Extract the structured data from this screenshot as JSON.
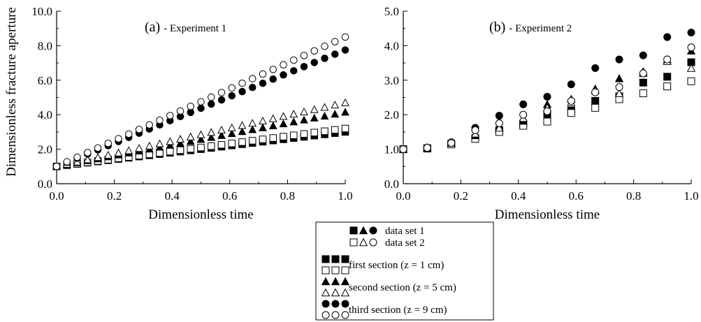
{
  "chart_data": [
    {
      "type": "scatter",
      "panel_label": "(a)",
      "title": "- Experiment 1",
      "xlabel": "Dimensionless time",
      "ylabel": "Dimensionless fracture aperture",
      "xlim": [
        0.0,
        1.0
      ],
      "ylim": [
        0.0,
        10.0
      ],
      "x_ticks": [
        "0.0",
        "0.2",
        "0.4",
        "0.6",
        "0.8",
        "1.0"
      ],
      "y_ticks": [
        "0.0",
        "2.0",
        "4.0",
        "6.0",
        "8.0",
        "10.0"
      ],
      "point_count": 29,
      "series": [
        {
          "name": "first section, data set 1",
          "marker": "square",
          "filled": true,
          "start": 1.0,
          "end": 3.0,
          "power": 1.0
        },
        {
          "name": "first section, data set 2",
          "marker": "square",
          "filled": false,
          "start": 1.0,
          "end": 3.2,
          "power": 1.0
        },
        {
          "name": "second section, data set 1",
          "marker": "triangle",
          "filled": true,
          "start": 1.0,
          "end": 4.15,
          "power": 1.0
        },
        {
          "name": "second section, data set 2",
          "marker": "triangle",
          "filled": false,
          "start": 1.0,
          "end": 4.7,
          "power": 1.0
        },
        {
          "name": "third section, data set 1",
          "marker": "circle",
          "filled": true,
          "start": 1.0,
          "end": 7.75,
          "power": 1.0
        },
        {
          "name": "third section, data set 2",
          "marker": "circle",
          "filled": false,
          "start": 1.0,
          "end": 8.5,
          "power": 1.0
        }
      ]
    },
    {
      "type": "scatter",
      "panel_label": "(b)",
      "title": "- Experiment 2",
      "xlabel": "Dimensionless time",
      "ylabel": "",
      "xlim": [
        0.0,
        1.0
      ],
      "ylim": [
        0.0,
        5.0
      ],
      "x_ticks": [
        "0.0",
        "0.2",
        "0.4",
        "0.6",
        "0.8",
        "1.0"
      ],
      "y_ticks": [
        "0.0",
        "1.0",
        "2.0",
        "3.0",
        "4.0",
        "5.0"
      ],
      "x": [
        0.0,
        0.0833,
        0.1667,
        0.25,
        0.3333,
        0.4167,
        0.5,
        0.5833,
        0.6667,
        0.75,
        0.8333,
        0.9167,
        1.0
      ],
      "series": [
        {
          "name": "first section, data set 1",
          "marker": "square",
          "filled": true,
          "values": [
            1.0,
            1.02,
            1.15,
            1.32,
            1.55,
            1.74,
            1.97,
            2.12,
            2.4,
            2.53,
            2.93,
            3.1,
            3.52
          ]
        },
        {
          "name": "first section, data set 2",
          "marker": "square",
          "filled": false,
          "values": [
            1.0,
            1.03,
            1.14,
            1.3,
            1.5,
            1.68,
            1.8,
            2.05,
            2.2,
            2.45,
            2.62,
            2.82,
            2.97
          ]
        },
        {
          "name": "second section, data set 1",
          "marker": "triangle",
          "filled": true,
          "values": [
            1.0,
            1.05,
            1.2,
            1.4,
            1.68,
            1.82,
            2.3,
            2.45,
            2.75,
            3.05,
            3.25,
            3.6,
            3.85
          ]
        },
        {
          "name": "second section, data set 2",
          "marker": "triangle",
          "filled": false,
          "values": [
            1.0,
            1.05,
            1.18,
            1.45,
            1.62,
            1.9,
            2.2,
            2.35,
            2.7,
            2.62,
            3.2,
            3.55,
            3.35
          ]
        },
        {
          "name": "third section, data set 1",
          "marker": "circle",
          "filled": true,
          "values": [
            1.0,
            1.02,
            1.2,
            1.62,
            1.97,
            2.3,
            2.52,
            2.88,
            3.35,
            3.6,
            3.72,
            4.25,
            4.38
          ]
        },
        {
          "name": "third section, data set 2",
          "marker": "circle",
          "filled": false,
          "values": [
            1.0,
            1.04,
            1.18,
            1.55,
            1.75,
            2.0,
            2.1,
            2.4,
            2.65,
            2.8,
            3.2,
            3.6,
            3.95
          ]
        }
      ]
    }
  ],
  "legend": {
    "data_set_1": "data set 1",
    "data_set_2": "data set 2",
    "first_section": "first section (z = 1 cm)",
    "second_section": "second section (z = 5 cm)",
    "third_section": "third section (z = 9 cm)"
  }
}
